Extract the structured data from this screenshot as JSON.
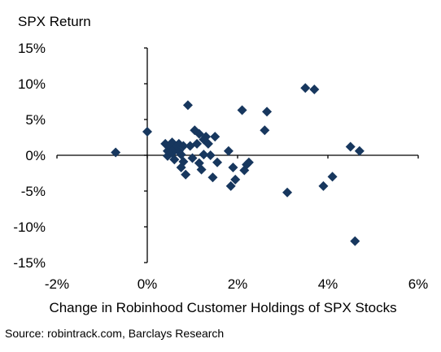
{
  "chart_data": {
    "type": "scatter",
    "title": "",
    "ylabel": "SPX Return",
    "xlabel": "Change in Robinhood Customer Holdings of SPX Stocks",
    "source": "Source: robintrack.com, Barclays Research",
    "xlim": [
      -2,
      6
    ],
    "ylim": [
      -15,
      15
    ],
    "x_ticks": [
      -2,
      0,
      2,
      4,
      6
    ],
    "x_tick_labels": [
      "-2%",
      "0%",
      "2%",
      "4%",
      "6%"
    ],
    "y_ticks": [
      15,
      10,
      5,
      0,
      -5,
      -10,
      -15
    ],
    "y_tick_labels": [
      "15%",
      "10%",
      "5%",
      "0%",
      "-5%",
      "-10%",
      "-15%"
    ],
    "grid": false,
    "legend": "none",
    "marker": "diamond",
    "color": "#17375e",
    "points": [
      {
        "x": -0.7,
        "y": 0.4
      },
      {
        "x": 0.0,
        "y": 3.3
      },
      {
        "x": 0.4,
        "y": 1.6
      },
      {
        "x": 0.45,
        "y": 0.6
      },
      {
        "x": 0.45,
        "y": -0.1
      },
      {
        "x": 0.5,
        "y": 1.3
      },
      {
        "x": 0.55,
        "y": 0.3
      },
      {
        "x": 0.55,
        "y": 1.8
      },
      {
        "x": 0.6,
        "y": 0.9
      },
      {
        "x": 0.6,
        "y": -0.6
      },
      {
        "x": 0.65,
        "y": 1.3
      },
      {
        "x": 0.7,
        "y": 0.6
      },
      {
        "x": 0.7,
        "y": 1.6
      },
      {
        "x": 0.75,
        "y": 0.1
      },
      {
        "x": 0.75,
        "y": -1.7
      },
      {
        "x": 0.8,
        "y": -0.9
      },
      {
        "x": 0.8,
        "y": 1.3
      },
      {
        "x": 0.85,
        "y": -2.7
      },
      {
        "x": 0.9,
        "y": 7.0
      },
      {
        "x": 0.95,
        "y": 1.3
      },
      {
        "x": 1.0,
        "y": -0.4
      },
      {
        "x": 1.05,
        "y": 3.5
      },
      {
        "x": 1.1,
        "y": 1.6
      },
      {
        "x": 1.15,
        "y": 3.0
      },
      {
        "x": 1.15,
        "y": -1.1
      },
      {
        "x": 1.2,
        "y": -2.0
      },
      {
        "x": 1.25,
        "y": 0.1
      },
      {
        "x": 1.25,
        "y": 2.2
      },
      {
        "x": 1.3,
        "y": 2.6
      },
      {
        "x": 1.35,
        "y": 1.6
      },
      {
        "x": 1.4,
        "y": 0.0
      },
      {
        "x": 1.45,
        "y": -3.1
      },
      {
        "x": 1.5,
        "y": 2.6
      },
      {
        "x": 1.55,
        "y": -1.0
      },
      {
        "x": 1.8,
        "y": 0.6
      },
      {
        "x": 1.85,
        "y": -4.3
      },
      {
        "x": 1.9,
        "y": -1.7
      },
      {
        "x": 1.95,
        "y": -3.4
      },
      {
        "x": 2.1,
        "y": 6.3
      },
      {
        "x": 2.15,
        "y": -2.1
      },
      {
        "x": 2.2,
        "y": -1.3
      },
      {
        "x": 2.25,
        "y": -1.0
      },
      {
        "x": 2.6,
        "y": 3.5
      },
      {
        "x": 2.65,
        "y": 6.1
      },
      {
        "x": 3.1,
        "y": -5.2
      },
      {
        "x": 3.5,
        "y": 9.4
      },
      {
        "x": 3.7,
        "y": 9.2
      },
      {
        "x": 3.9,
        "y": -4.3
      },
      {
        "x": 4.1,
        "y": -3.0
      },
      {
        "x": 4.5,
        "y": 1.2
      },
      {
        "x": 4.6,
        "y": -12.0
      },
      {
        "x": 4.7,
        "y": 0.6
      }
    ]
  }
}
